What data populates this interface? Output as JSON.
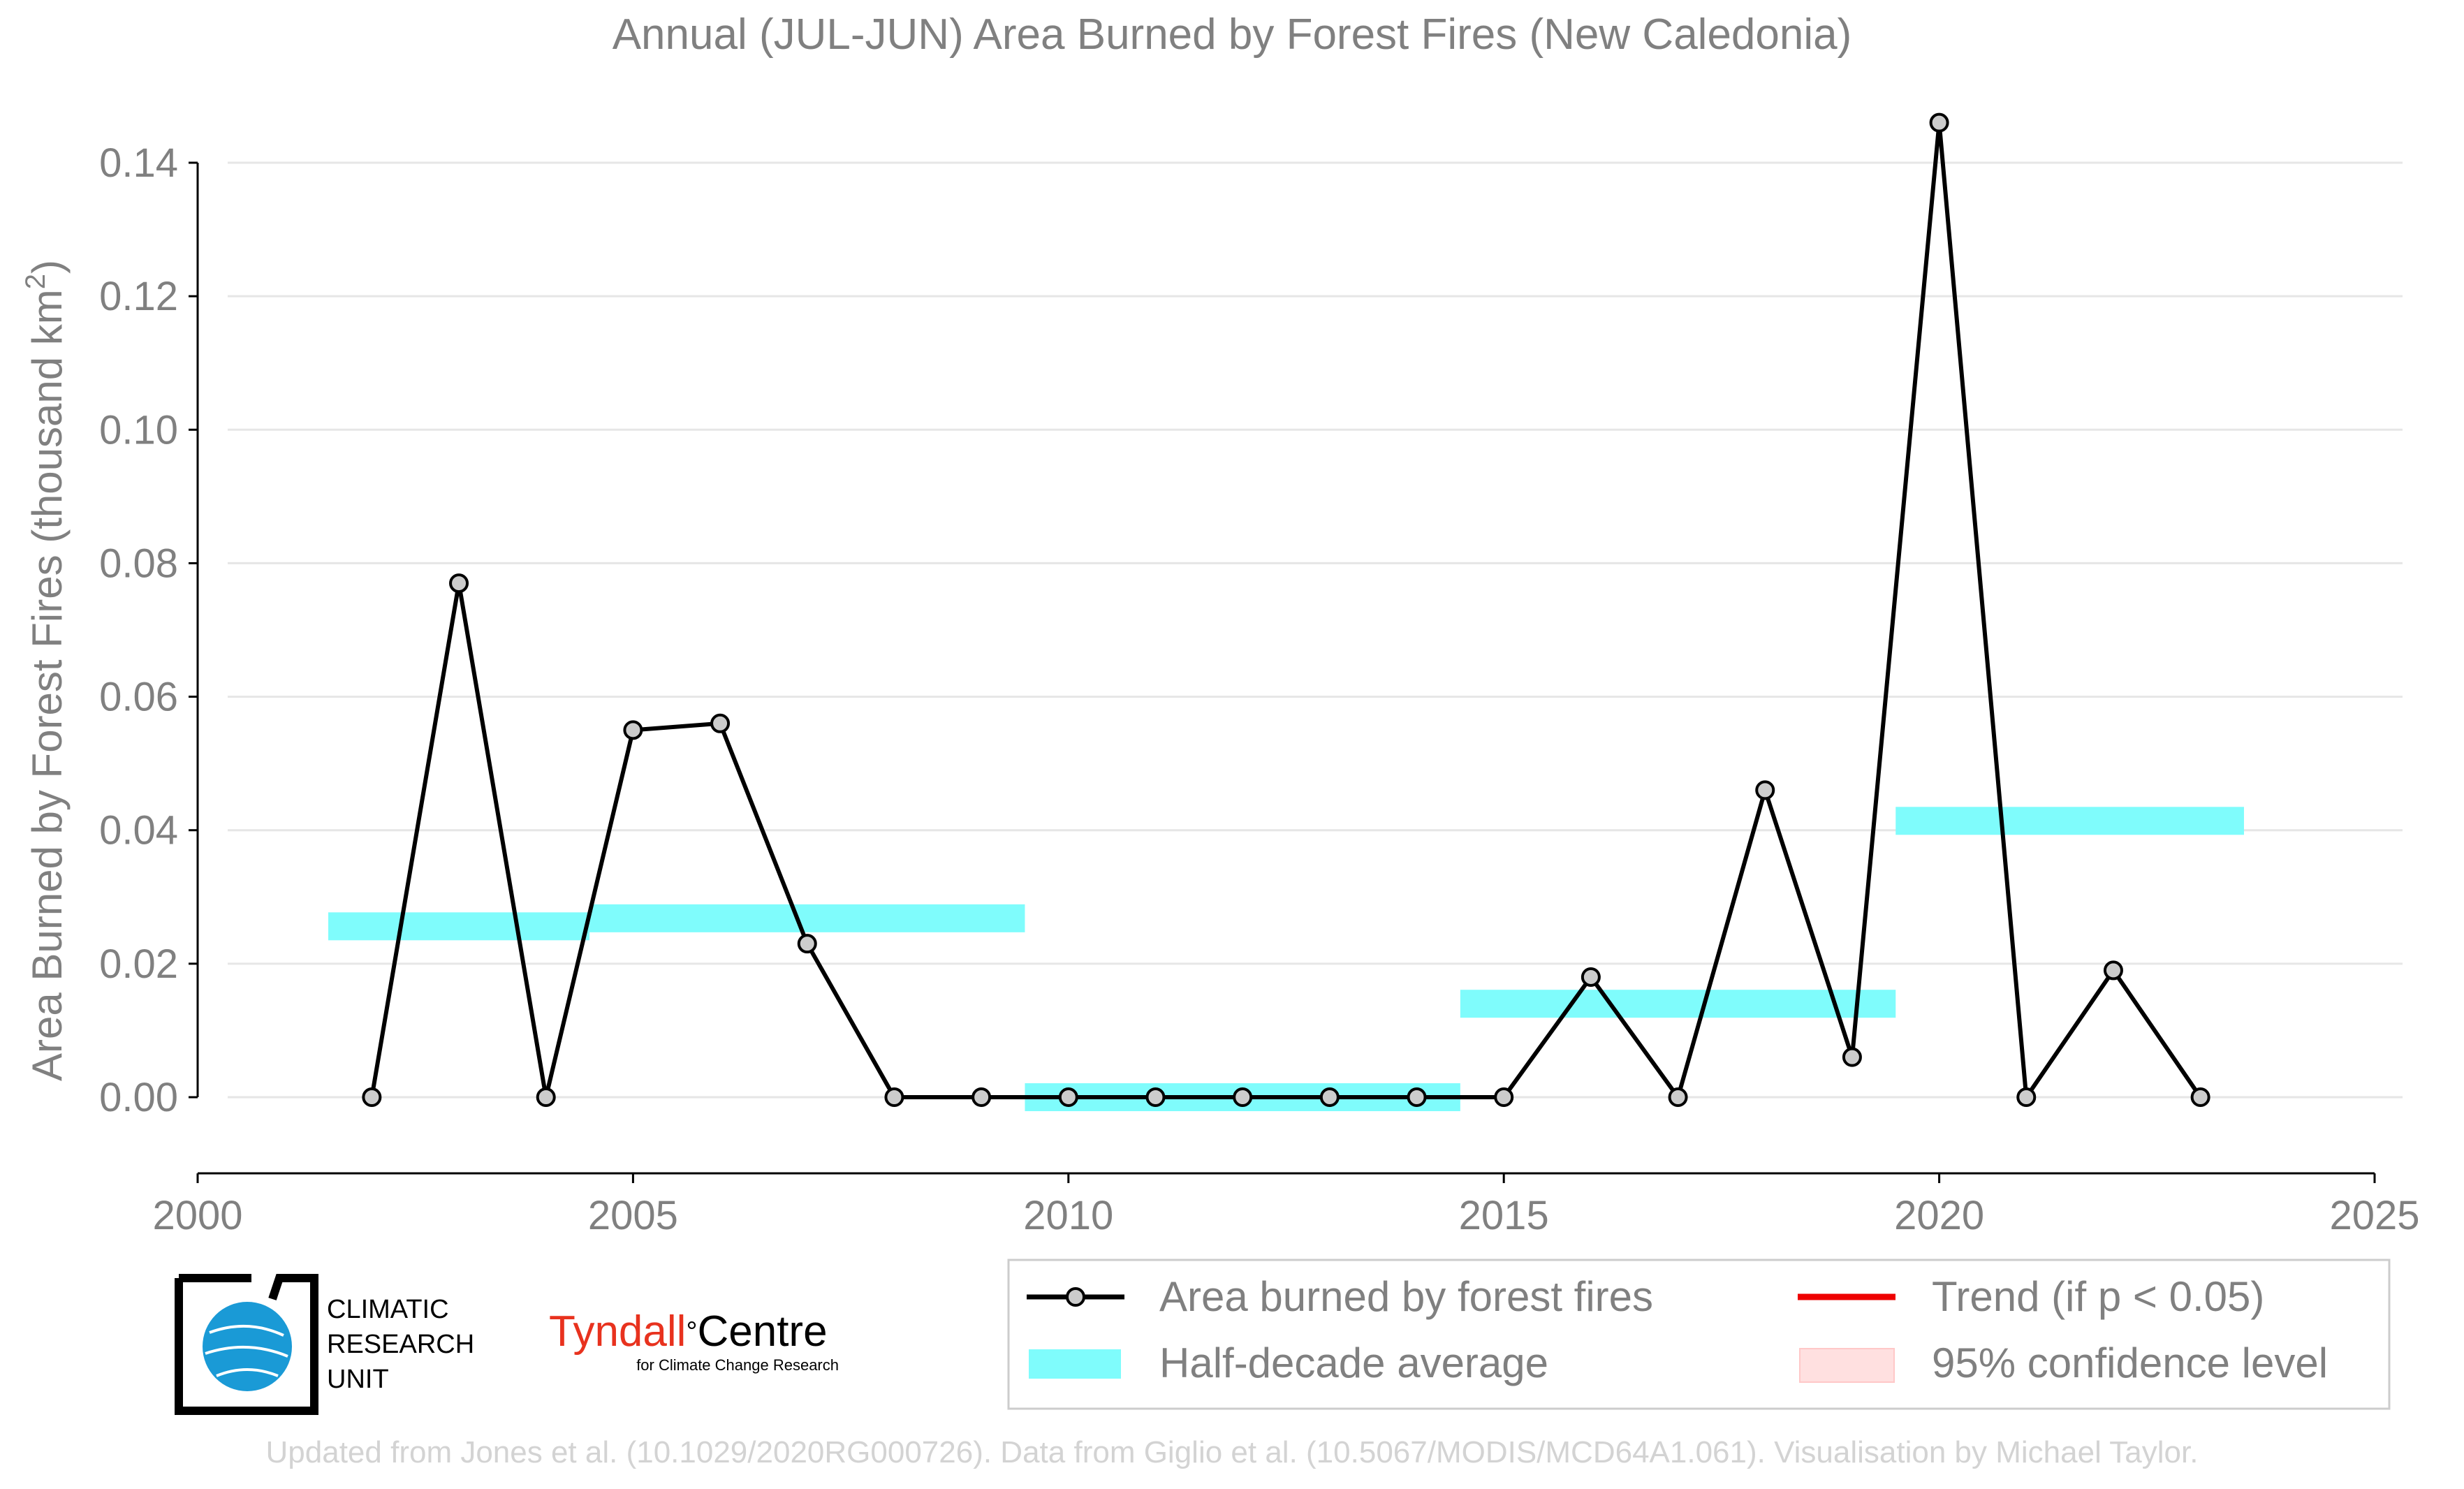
{
  "chart_data": {
    "type": "line",
    "title": "Annual (JUL-JUN) Area Burned by Forest Fires (New Caledonia)",
    "xlabel": "",
    "ylabel_main": "Area Burned by Forest Fires (thousand km",
    "ylabel_sup": "2",
    "ylabel_close": ")",
    "xlim": [
      2000,
      2025
    ],
    "ylim": [
      -0.012,
      0.149
    ],
    "xticks": [
      2000,
      2005,
      2010,
      2015,
      2020,
      2025
    ],
    "xtick_labels": [
      "2000",
      "2005",
      "2010",
      "2015",
      "2020",
      "2025"
    ],
    "yticks": [
      0.0,
      0.02,
      0.04,
      0.06,
      0.08,
      0.1,
      0.12,
      0.14
    ],
    "ytick_labels": [
      "0.00",
      "0.02",
      "0.04",
      "0.06",
      "0.08",
      "0.10",
      "0.12",
      "0.14"
    ],
    "grid": true,
    "series": [
      {
        "name": "Area burned by forest fires",
        "color": "#000000",
        "marker_color": "#cccccc",
        "x": [
          2002,
          2003,
          2004,
          2005,
          2006,
          2007,
          2008,
          2009,
          2010,
          2011,
          2012,
          2013,
          2014,
          2015,
          2016,
          2017,
          2018,
          2019,
          2020,
          2021,
          2022,
          2023
        ],
        "y": [
          0.0,
          0.077,
          0.0,
          0.055,
          0.056,
          0.023,
          0.0,
          0.0,
          0.0,
          0.0,
          0.0,
          0.0,
          0.0,
          0.0,
          0.018,
          0.0,
          0.046,
          0.006,
          0.146,
          0.0,
          0.019,
          0.0
        ]
      }
    ],
    "half_decade_average": {
      "name": "Half-decade average",
      "color": "#7ffcfc",
      "segments": [
        {
          "x0": 2001.5,
          "x1": 2004.5,
          "y": 0.0256
        },
        {
          "x0": 2004.5,
          "x1": 2009.5,
          "y": 0.0268
        },
        {
          "x0": 2009.5,
          "x1": 2014.5,
          "y": 0.0
        },
        {
          "x0": 2014.5,
          "x1": 2019.5,
          "y": 0.014
        },
        {
          "x0": 2019.5,
          "x1": 2023.5,
          "y": 0.0414
        }
      ]
    },
    "legend": {
      "position": "bottom-right",
      "items": [
        {
          "label": "Area burned by forest fires",
          "kind": "line-marker",
          "color": "#000000"
        },
        {
          "label": "Half-decade average",
          "kind": "band",
          "color": "#7ffcfc"
        },
        {
          "label": "Trend (if p < 0.05)",
          "kind": "line",
          "color": "#ee0000"
        },
        {
          "label": "95% confidence level",
          "kind": "patch",
          "color": "#ffe0e0"
        }
      ]
    }
  },
  "logos": {
    "cru_lines": [
      "CLIMATIC",
      "RESEARCH",
      "UNIT"
    ],
    "tyndall_name": "Tyndall",
    "tyndall_degree": "°",
    "tyndall_centre": "Centre",
    "tyndall_sub": "for Climate Change Research"
  },
  "credit": "Updated from Jones et al. (10.1029/2020RG000726). Data from Giglio et al. (10.5067/MODIS/MCD64A1.061). Visualisation by Michael Taylor.",
  "colors": {
    "text_gray": "#808080",
    "grid": "#e6e6e6",
    "credit": "#d3d3d3",
    "cru_blue": "#1a9ad6",
    "tyndall_red": "#e8321e"
  }
}
